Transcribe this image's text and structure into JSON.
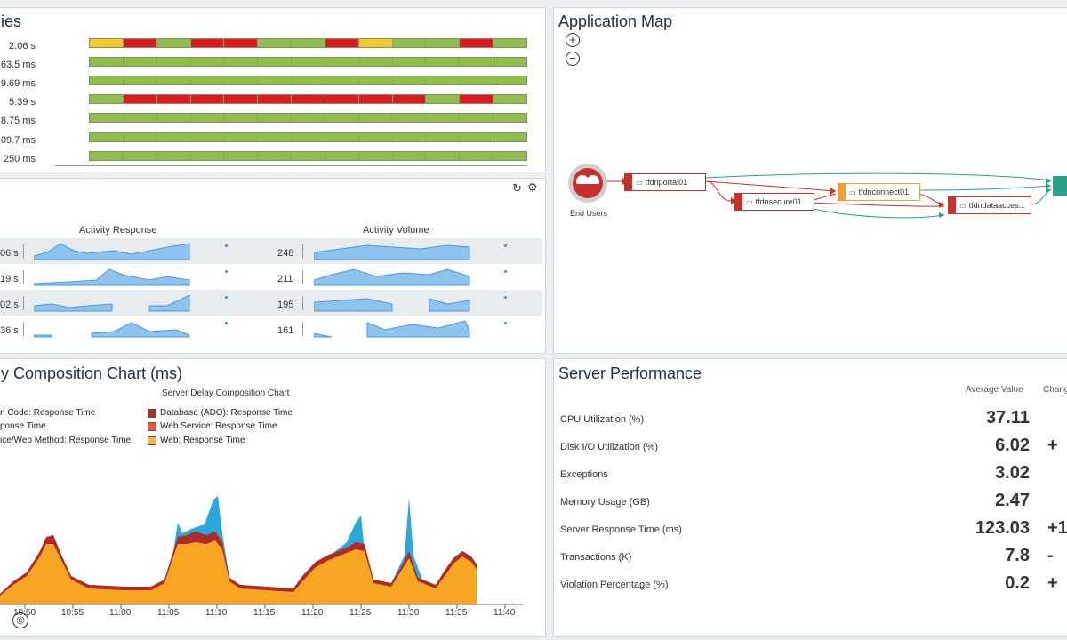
{
  "top_left": {
    "title": "ies",
    "rows": [
      {
        "label": "2.06 s",
        "segs": "yrgrrggryggrg"
      },
      {
        "label": "63.5 ms",
        "segs": "ggggggggggggg"
      },
      {
        "label": "9.69 ms",
        "segs": "ggggggggggggg"
      },
      {
        "label": "5.39 s",
        "segs": "grrrrrrrrrgrg"
      },
      {
        "label": "8.75 ms",
        "segs": "ggggggggggggg"
      },
      {
        "label": "09.7 ms",
        "segs": "ggggggggggggg"
      },
      {
        "label": "250 ms",
        "segs": "ggggggggggggg"
      }
    ]
  },
  "activity": {
    "response_header": "Activity Response",
    "volume_header": "Activity Volume",
    "refresh_icon": "refresh-icon",
    "settings_icon": "gear-icon",
    "rows": [
      {
        "resp": "06 s",
        "vol": "248"
      },
      {
        "resp": "19 s",
        "vol": "211"
      },
      {
        "resp": "02 s",
        "vol": "195"
      },
      {
        "resp": "36 s",
        "vol": "161"
      }
    ]
  },
  "app_map": {
    "title": "Application Map",
    "zoom_in": "+",
    "zoom_out": "−",
    "end_users_label": "End Users",
    "nodes": [
      "tfdnportal01",
      "tfdnsecure01",
      "tfdnconnect01",
      "tfdndataacces..."
    ]
  },
  "composition": {
    "title": "y Composition Chart (ms)",
    "chart_title": "Server Delay Composition Chart",
    "legend_left": [
      "n Code: Response Time",
      "ponse Time",
      "ice/Web Method: Response Time"
    ],
    "legend_right": [
      {
        "label": "Database (ADO): Response Time",
        "color": "#b22a26"
      },
      {
        "label": "Web Service: Response Time",
        "color": "#e9572a"
      },
      {
        "label": "Web: Response Time",
        "color": "#f6b93b"
      }
    ],
    "copyright": "©"
  },
  "chart_data": {
    "type": "area",
    "title": "Server Delay Composition Chart",
    "x": [
      "10:50",
      "10:55",
      "11:00",
      "11:05",
      "11:10",
      "11:15",
      "11:20",
      "11:25",
      "11:30",
      "11:35",
      "11:40"
    ],
    "series": [
      {
        "name": "Web: Response Time",
        "color": "#f6a623"
      },
      {
        "name": "Web Service: Response Time",
        "color": "#e9572a"
      },
      {
        "name": "Database (ADO): Response Time",
        "color": "#b22a26"
      }
    ]
  },
  "server_perf": {
    "title": "Server Performance",
    "col_avg": "Average Value",
    "col_change": "Chang",
    "rows": [
      {
        "label": "CPU Utilization (%)",
        "value": "37.11",
        "change": ""
      },
      {
        "label": "Disk I/O Utilization (%)",
        "value": "6.02",
        "change": "+"
      },
      {
        "label": "Exceptions",
        "value": "3.02",
        "change": ""
      },
      {
        "label": "Memory Usage (GB)",
        "value": "2.47",
        "change": ""
      },
      {
        "label": "Server Response Time (ms)",
        "value": "123.03",
        "change": "+1"
      },
      {
        "label": "Transactions (K)",
        "value": "7.8",
        "change": "-"
      },
      {
        "label": "Violation Percentage (%)",
        "value": "0.2",
        "change": "+"
      }
    ]
  }
}
